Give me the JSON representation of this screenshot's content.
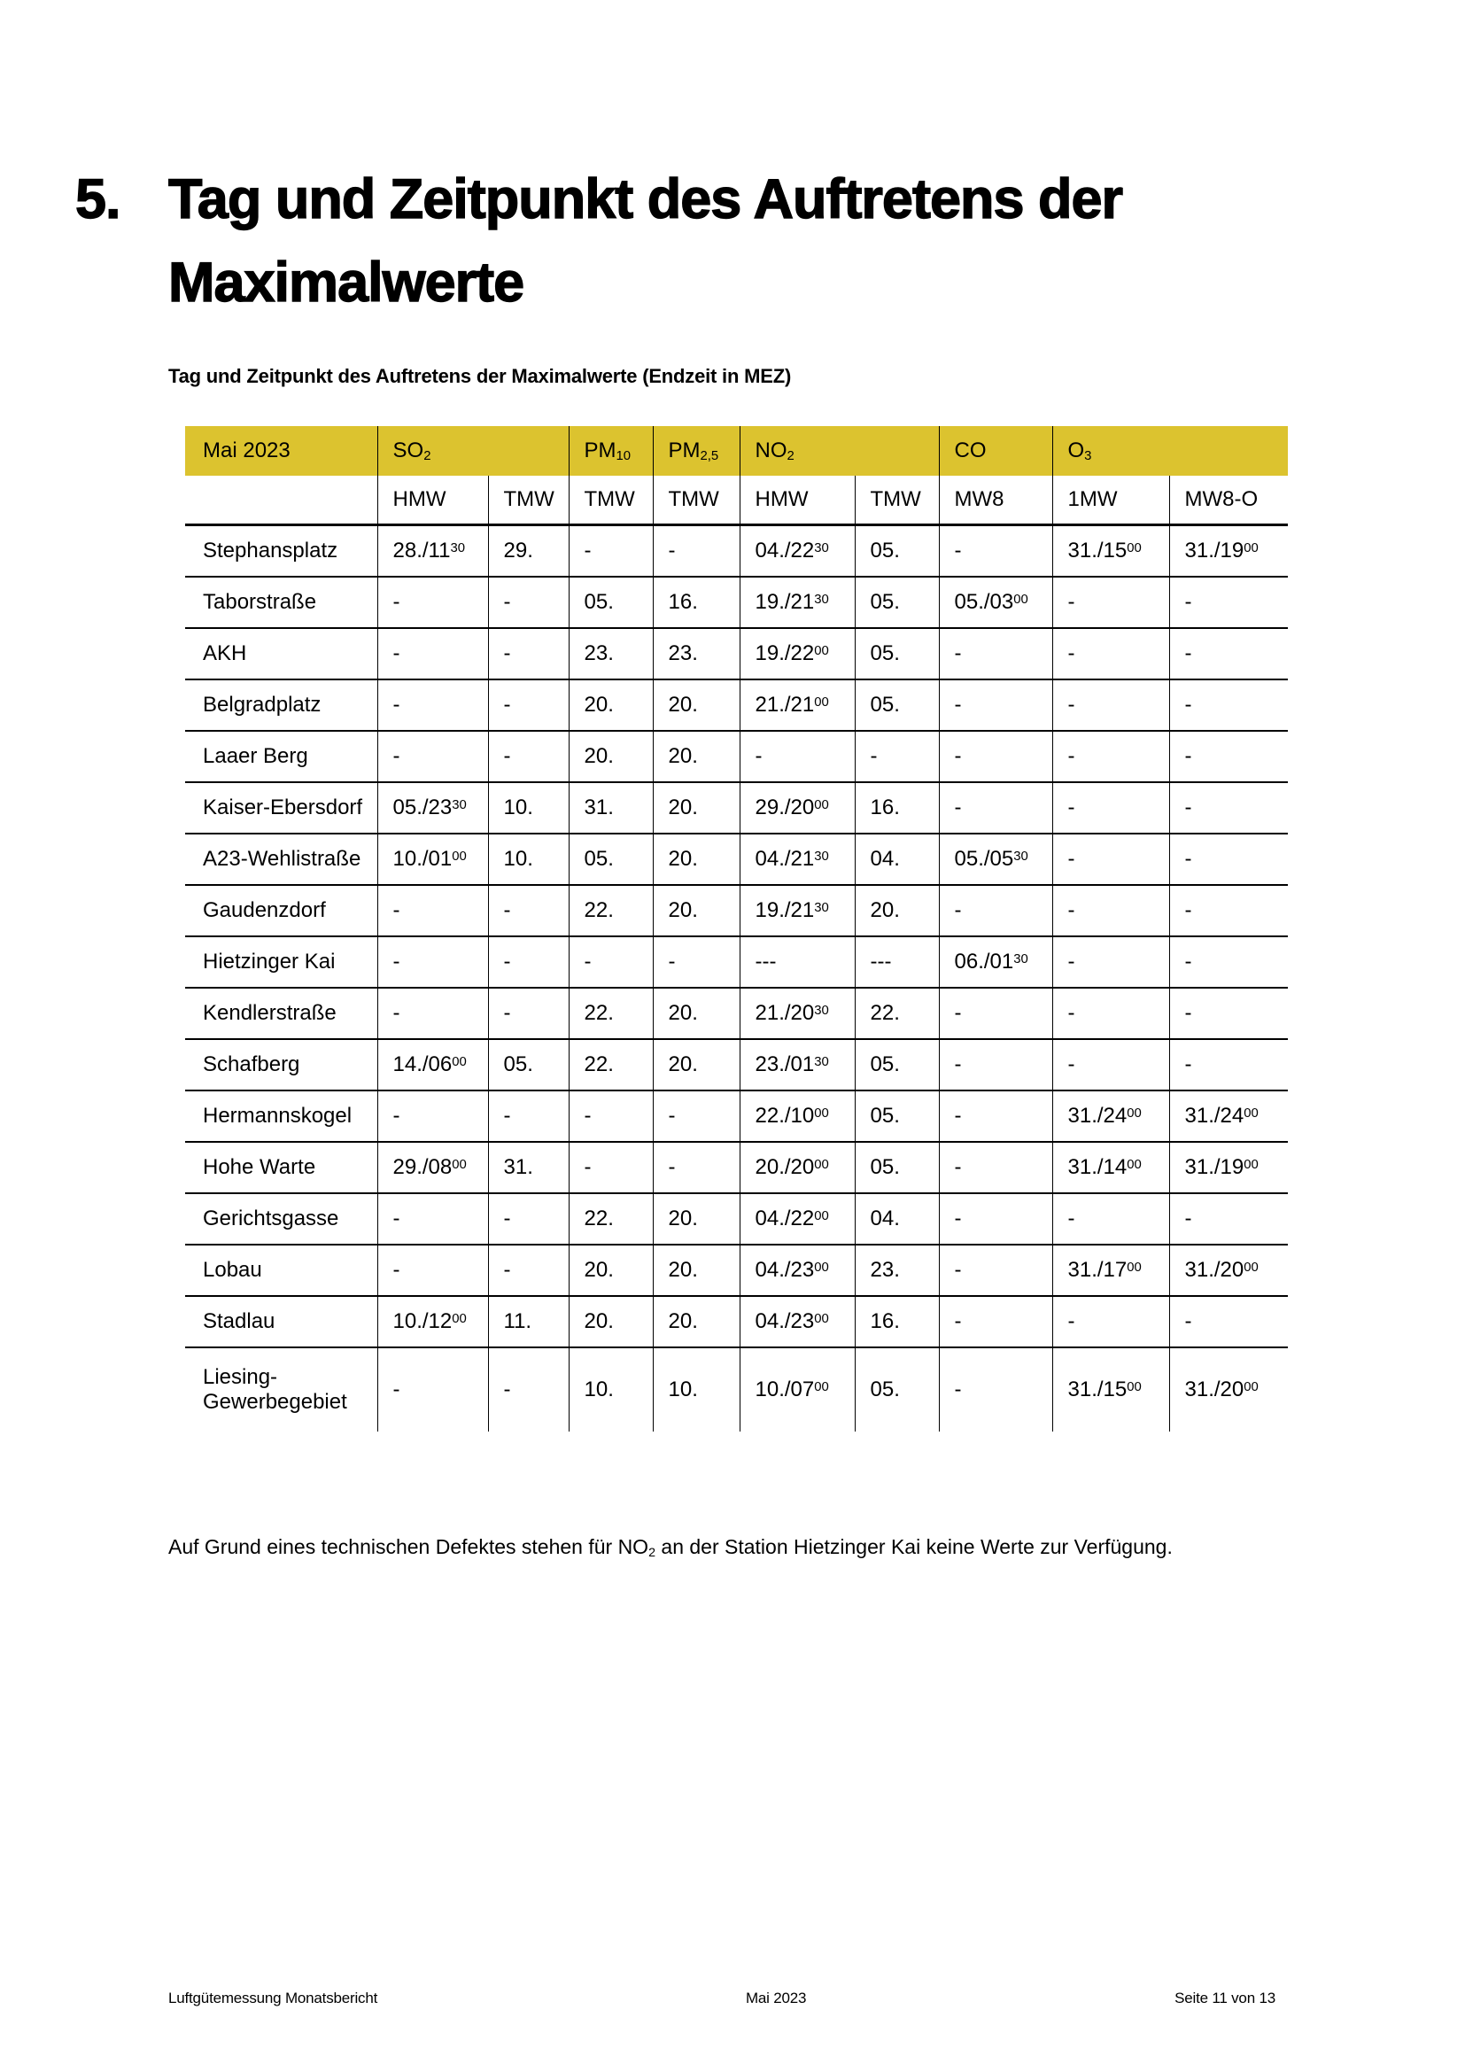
{
  "colors": {
    "header_band": "#dcc32f",
    "text": "#000000",
    "page_background": "#ffffff"
  },
  "heading": {
    "number": "5.",
    "title_lines": [
      "Tag und Zeitpunkt des Auftretens der",
      "Maximalwerte"
    ]
  },
  "table": {
    "caption": "Tag und Zeitpunkt des Auftretens der Maximalwerte (Endzeit in MEZ)",
    "period": "Mai 2023",
    "groups": [
      "SO{_2}",
      "PM{_10}",
      "PM{_2,5}",
      "NO{_2}",
      "CO",
      "O{_3}"
    ],
    "subheaders": [
      "HMW",
      "TMW",
      "TMW",
      "TMW",
      "HMW",
      "TMW",
      "MW8",
      "1MW",
      "MW8-O"
    ],
    "rows": [
      {
        "station": "Stephansplatz",
        "cells": [
          "28./11{^30}",
          "29.",
          "-",
          "-",
          "04./22{^30}",
          "05.",
          "-",
          "31./15{^00}",
          "31./19{^00}"
        ]
      },
      {
        "station": "Taborstraße",
        "cells": [
          "-",
          "-",
          "05.",
          "16.",
          "19./21{^30}",
          "05.",
          "05./03{^00}",
          "-",
          "-"
        ]
      },
      {
        "station": "AKH",
        "cells": [
          "-",
          "-",
          "23.",
          "23.",
          "19./22{^00}",
          "05.",
          "-",
          "-",
          "-"
        ]
      },
      {
        "station": "Belgradplatz",
        "cells": [
          "-",
          "-",
          "20.",
          "20.",
          "21./21{^00}",
          "05.",
          "-",
          "-",
          "-"
        ]
      },
      {
        "station": "Laaer Berg",
        "cells": [
          "-",
          "-",
          "20.",
          "20.",
          "-",
          "-",
          "-",
          "-",
          "-"
        ]
      },
      {
        "station": "Kaiser-Ebersdorf",
        "cells": [
          "05./23{^30}",
          "10.",
          "31.",
          "20.",
          "29./20{^00}",
          "16.",
          "-",
          "-",
          "-"
        ]
      },
      {
        "station": "A23-Wehlistraße",
        "cells": [
          "10./01{^00}",
          "10.",
          "05.",
          "20.",
          "04./21{^30}",
          "04.",
          "05./05{^30}",
          "-",
          "-"
        ]
      },
      {
        "station": "Gaudenzdorf",
        "cells": [
          "-",
          "-",
          "22.",
          "20.",
          "19./21{^30}",
          "20.",
          "-",
          "-",
          "-"
        ]
      },
      {
        "station": "Hietzinger Kai",
        "cells": [
          "-",
          "-",
          "-",
          "-",
          "---",
          "---",
          "06./01{^30}",
          "-",
          "-"
        ]
      },
      {
        "station": "Kendlerstraße",
        "cells": [
          "-",
          "-",
          "22.",
          "20.",
          "21./20{^30}",
          "22.",
          "-",
          "-",
          "-"
        ]
      },
      {
        "station": "Schafberg",
        "cells": [
          "14./06{^00}",
          "05.",
          "22.",
          "20.",
          "23./01{^30}",
          "05.",
          "-",
          "-",
          "-"
        ]
      },
      {
        "station": "Hermannskogel",
        "cells": [
          "-",
          "-",
          "-",
          "-",
          "22./10{^00}",
          "05.",
          "-",
          "31./24{^00}",
          "31./24{^00}"
        ]
      },
      {
        "station": "Hohe Warte",
        "cells": [
          "29./08{^00}",
          "31.",
          "-",
          "-",
          "20./20{^00}",
          "05.",
          "-",
          "31./14{^00}",
          "31./19{^00}"
        ]
      },
      {
        "station": "Gerichtsgasse",
        "cells": [
          "-",
          "-",
          "22.",
          "20.",
          "04./22{^00}",
          "04.",
          "-",
          "-",
          "-"
        ]
      },
      {
        "station": "Lobau",
        "cells": [
          "-",
          "-",
          "20.",
          "20.",
          "04./23{^00}",
          "23.",
          "-",
          "31./17{^00}",
          "31./20{^00}"
        ]
      },
      {
        "station": "Stadlau",
        "cells": [
          "10./12{^00}",
          "11.",
          "20.",
          "20.",
          "04./23{^00}",
          "16.",
          "-",
          "-",
          "-"
        ]
      },
      {
        "station": "Liesing-Gewerbegebiet",
        "cells": [
          "-",
          "-",
          "10.",
          "10.",
          "10./07{^00}",
          "05.",
          "-",
          "31./15{^00}",
          "31./20{^00}"
        ]
      }
    ]
  },
  "footnote": "Auf Grund eines technischen Defektes stehen für NO{_2} an der Station Hietzinger Kai keine Werte zur Verfügung.",
  "footer": {
    "left": "Luftgütemessung Monatsbericht",
    "center": "Mai 2023",
    "right": "Seite 11 von 13"
  }
}
